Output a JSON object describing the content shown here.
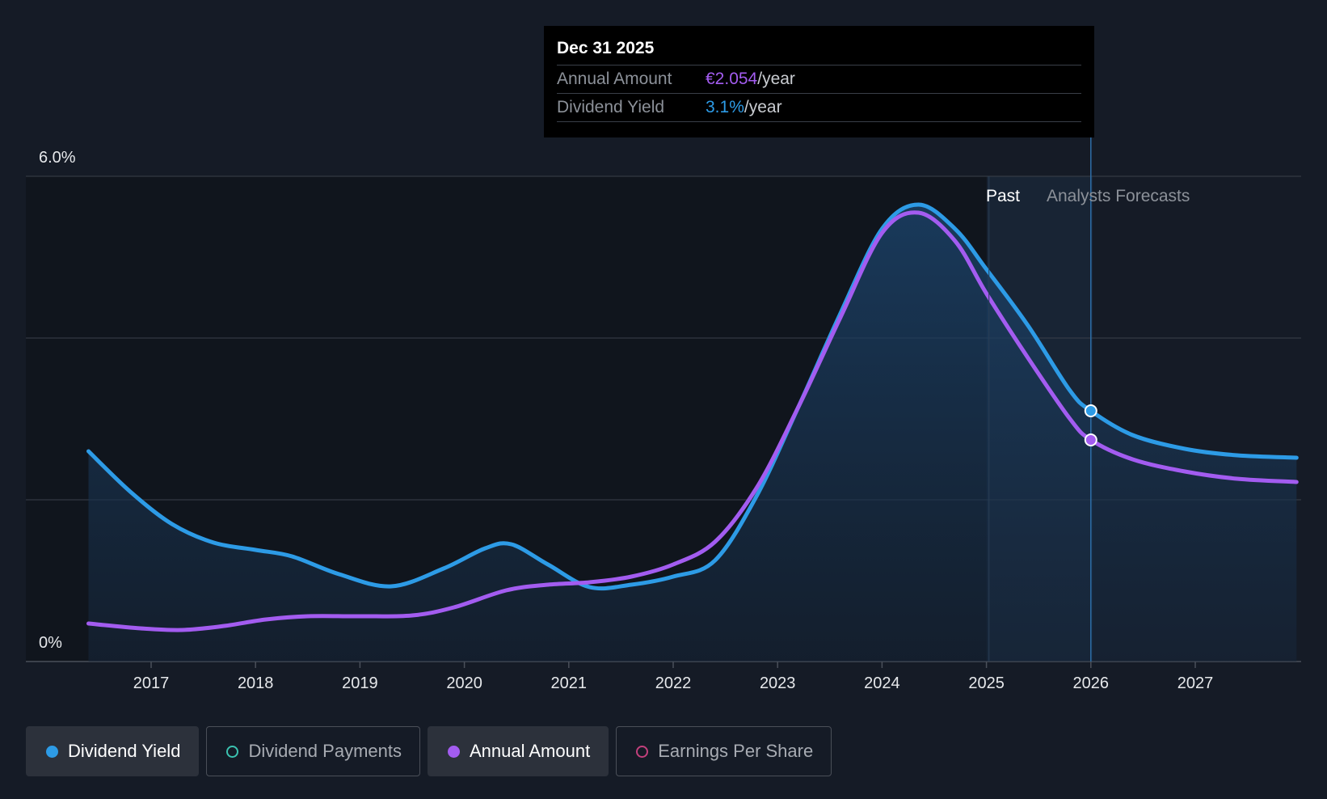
{
  "tooltip": {
    "date": "Dec 31 2025",
    "rows": [
      {
        "label": "Annual Amount",
        "value": "€2.054",
        "unit": "/year"
      },
      {
        "label": "Dividend Yield",
        "value": "3.1%",
        "unit": "/year"
      }
    ]
  },
  "regions": {
    "past_label": "Past",
    "forecast_label": "Analysts Forecasts"
  },
  "legend": [
    {
      "label": "Dividend Yield",
      "active": true,
      "color": "#2d9be6",
      "filled": true
    },
    {
      "label": "Dividend Payments",
      "active": false,
      "color": "#3bc2b0",
      "filled": false
    },
    {
      "label": "Annual Amount",
      "active": true,
      "color": "#a35cf0",
      "filled": true
    },
    {
      "label": "Earnings Per Share",
      "active": false,
      "color": "#c2407c",
      "filled": false
    }
  ],
  "colors": {
    "background": "#151b26",
    "dividend_yield": "#2d9be6",
    "annual_amount": "#a35cf0",
    "grid": "#3a404a"
  },
  "chart_data": {
    "type": "line",
    "title": "",
    "xlabel": "",
    "ylabel": "",
    "y_tick_labels": [
      "0%",
      "6.0%"
    ],
    "ylim": [
      0,
      6.0
    ],
    "xlim": [
      2015.9,
      2027.97
    ],
    "x_ticks": [
      2017,
      2018,
      2019,
      2020,
      2021,
      2022,
      2023,
      2024,
      2025,
      2026,
      2027
    ],
    "x_tick_labels": [
      "2017",
      "2018",
      "2019",
      "2020",
      "2021",
      "2022",
      "2023",
      "2024",
      "2025",
      "2026",
      "2027"
    ],
    "grid": true,
    "past_forecast_boundary": 2025.45,
    "highlight_x": 2026.0,
    "legend_position": "bottom",
    "series": [
      {
        "name": "Dividend Yield",
        "color": "#2d9be6",
        "area": true,
        "points": [
          [
            2016.4,
            2.6
          ],
          [
            2016.8,
            2.1
          ],
          [
            2017.2,
            1.7
          ],
          [
            2017.6,
            1.47
          ],
          [
            2018.0,
            1.38
          ],
          [
            2018.35,
            1.3
          ],
          [
            2018.8,
            1.08
          ],
          [
            2019.3,
            0.93
          ],
          [
            2019.8,
            1.15
          ],
          [
            2020.2,
            1.4
          ],
          [
            2020.45,
            1.45
          ],
          [
            2020.8,
            1.2
          ],
          [
            2021.2,
            0.92
          ],
          [
            2021.6,
            0.95
          ],
          [
            2022.0,
            1.05
          ],
          [
            2022.4,
            1.25
          ],
          [
            2022.8,
            2.05
          ],
          [
            2023.2,
            3.15
          ],
          [
            2023.6,
            4.3
          ],
          [
            2024.0,
            5.35
          ],
          [
            2024.35,
            5.65
          ],
          [
            2024.7,
            5.35
          ],
          [
            2025.0,
            4.85
          ],
          [
            2025.4,
            4.15
          ],
          [
            2025.8,
            3.35
          ],
          [
            2026.0,
            3.1
          ],
          [
            2026.4,
            2.8
          ],
          [
            2026.9,
            2.63
          ],
          [
            2027.4,
            2.55
          ],
          [
            2027.97,
            2.52
          ]
        ]
      },
      {
        "name": "Annual Amount",
        "color": "#a35cf0",
        "area": false,
        "points": [
          [
            2016.4,
            0.47
          ],
          [
            2016.9,
            0.41
          ],
          [
            2017.3,
            0.39
          ],
          [
            2017.7,
            0.44
          ],
          [
            2018.1,
            0.52
          ],
          [
            2018.5,
            0.56
          ],
          [
            2019.0,
            0.56
          ],
          [
            2019.5,
            0.57
          ],
          [
            2019.9,
            0.67
          ],
          [
            2020.4,
            0.88
          ],
          [
            2020.8,
            0.95
          ],
          [
            2021.2,
            0.98
          ],
          [
            2021.6,
            1.05
          ],
          [
            2022.0,
            1.2
          ],
          [
            2022.4,
            1.48
          ],
          [
            2022.8,
            2.15
          ],
          [
            2023.2,
            3.15
          ],
          [
            2023.6,
            4.25
          ],
          [
            2024.0,
            5.3
          ],
          [
            2024.35,
            5.55
          ],
          [
            2024.7,
            5.2
          ],
          [
            2025.0,
            4.55
          ],
          [
            2025.4,
            3.75
          ],
          [
            2025.8,
            3.0
          ],
          [
            2026.0,
            2.74
          ],
          [
            2026.4,
            2.5
          ],
          [
            2026.9,
            2.35
          ],
          [
            2027.4,
            2.26
          ],
          [
            2027.97,
            2.22
          ]
        ]
      }
    ]
  }
}
